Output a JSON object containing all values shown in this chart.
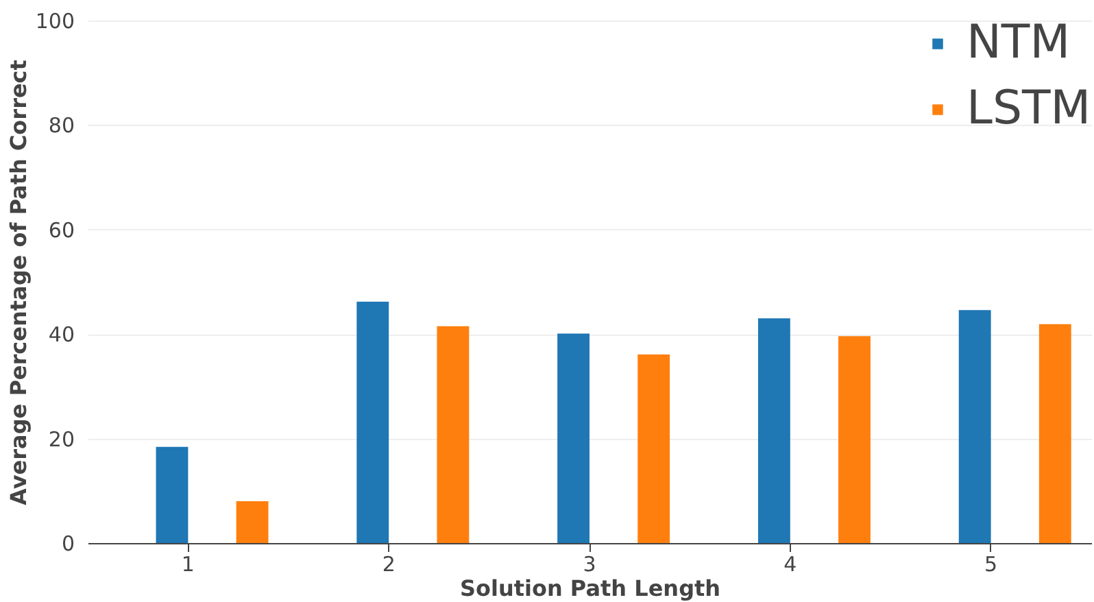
{
  "chart_data": {
    "type": "bar",
    "xlabel": "Solution Path Length",
    "ylabel": "Average Percentage of Path Correct",
    "categories": [
      "1",
      "2",
      "3",
      "4",
      "5"
    ],
    "series": [
      {
        "name": "NTM",
        "color": "#1f77b4",
        "values": [
          18.4,
          46.2,
          40.1,
          43.0,
          44.6
        ]
      },
      {
        "name": "LSTM",
        "color": "#ff7f0e",
        "values": [
          8.0,
          41.5,
          36.1,
          39.6,
          41.9
        ]
      }
    ],
    "ylim": [
      0,
      100
    ],
    "yticks": [
      0,
      20,
      40,
      60,
      80,
      100
    ],
    "grid": "y",
    "legend": "top right"
  }
}
